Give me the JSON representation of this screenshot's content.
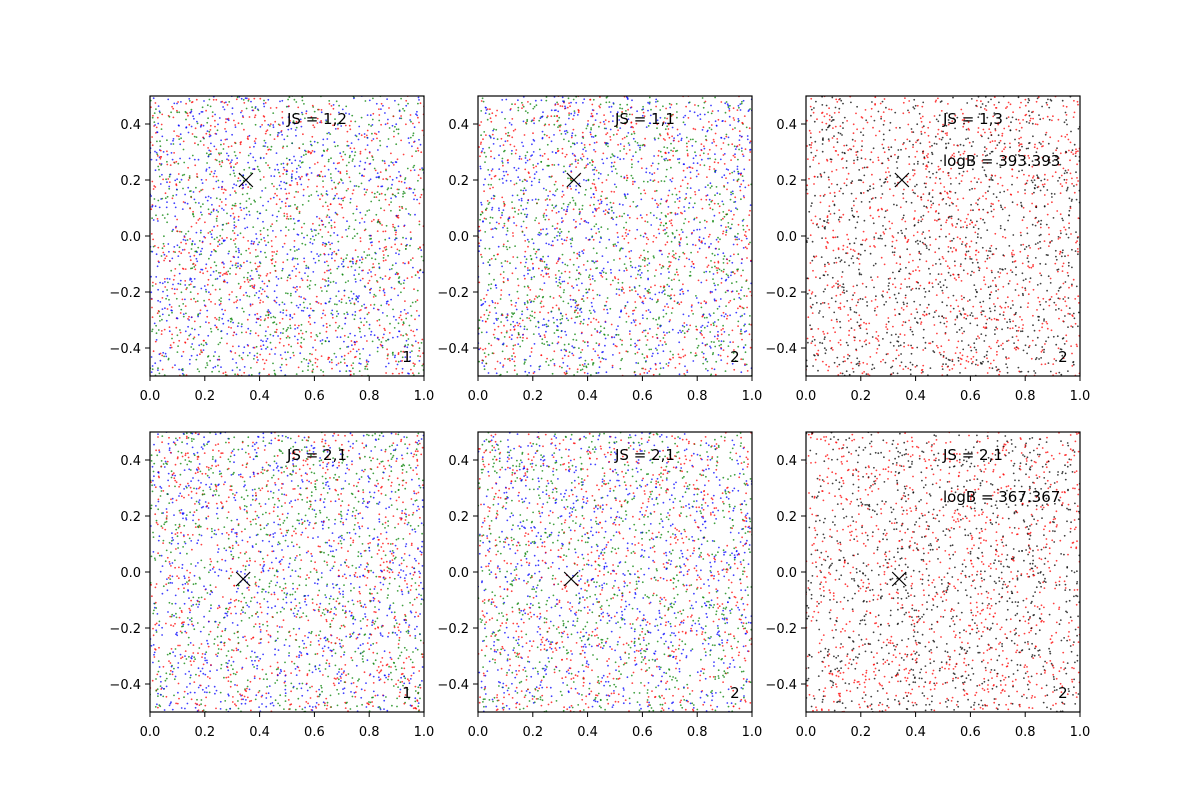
{
  "figure": {
    "background": "#ffffff",
    "scatter_colors": {
      "red": "#ff0000",
      "green": "#008000",
      "blue": "#0000ff",
      "black": "#000000"
    }
  },
  "chart_data": [
    {
      "type": "scatter",
      "panel": "top-left",
      "xlim": [
        0.0,
        1.0
      ],
      "ylim": [
        -0.5,
        0.5
      ],
      "x_ticks": [
        "0.0",
        "0.2",
        "0.4",
        "0.6",
        "0.8",
        "1.0"
      ],
      "y_ticks": [
        "−0.4",
        "−0.2",
        "0.0",
        "0.2",
        "0.4"
      ],
      "x_tick_values": [
        0.0,
        0.2,
        0.4,
        0.6,
        0.8,
        1.0
      ],
      "y_tick_values": [
        -0.4,
        -0.2,
        0.0,
        0.2,
        0.4
      ],
      "series_colors": [
        "#ff0000",
        "#008000",
        "#0000ff"
      ],
      "points_per_series": 900,
      "marker": {
        "x": 0.35,
        "y": 0.2,
        "symbol": "x"
      },
      "annotations": {
        "js": "JS = 1,2",
        "corner": "1",
        "logb": ""
      }
    },
    {
      "type": "scatter",
      "panel": "top-middle",
      "xlim": [
        0.0,
        1.0
      ],
      "ylim": [
        -0.5,
        0.5
      ],
      "x_ticks": [
        "0.0",
        "0.2",
        "0.4",
        "0.6",
        "0.8",
        "1.0"
      ],
      "y_ticks": [
        "−0.4",
        "−0.2",
        "0.0",
        "0.2",
        "0.4"
      ],
      "x_tick_values": [
        0.0,
        0.2,
        0.4,
        0.6,
        0.8,
        1.0
      ],
      "y_tick_values": [
        -0.4,
        -0.2,
        0.0,
        0.2,
        0.4
      ],
      "series_colors": [
        "#ff0000",
        "#008000",
        "#0000ff"
      ],
      "points_per_series": 900,
      "marker": {
        "x": 0.35,
        "y": 0.2,
        "symbol": "x"
      },
      "annotations": {
        "js": "JS = 1,1",
        "corner": "2",
        "logb": ""
      }
    },
    {
      "type": "scatter",
      "panel": "top-right",
      "xlim": [
        0.0,
        1.0
      ],
      "ylim": [
        -0.5,
        0.5
      ],
      "x_ticks": [
        "0.0",
        "0.2",
        "0.4",
        "0.6",
        "0.8",
        "1.0"
      ],
      "y_ticks": [
        "−0.4",
        "−0.2",
        "0.0",
        "0.2",
        "0.4"
      ],
      "x_tick_values": [
        0.0,
        0.2,
        0.4,
        0.6,
        0.8,
        1.0
      ],
      "y_tick_values": [
        -0.4,
        -0.2,
        0.0,
        0.2,
        0.4
      ],
      "series_colors": [
        "#ff0000",
        "#000000"
      ],
      "points_per_series": 1100,
      "marker": {
        "x": 0.35,
        "y": 0.2,
        "symbol": "x"
      },
      "annotations": {
        "js": "JS = 1,3",
        "corner": "2",
        "logb": "logB = 393.393"
      }
    },
    {
      "type": "scatter",
      "panel": "bottom-left",
      "xlim": [
        0.0,
        1.0
      ],
      "ylim": [
        -0.5,
        0.5
      ],
      "x_ticks": [
        "0.0",
        "0.2",
        "0.4",
        "0.6",
        "0.8",
        "1.0"
      ],
      "y_ticks": [
        "−0.4",
        "−0.2",
        "0.0",
        "0.2",
        "0.4"
      ],
      "x_tick_values": [
        0.0,
        0.2,
        0.4,
        0.6,
        0.8,
        1.0
      ],
      "y_tick_values": [
        -0.4,
        -0.2,
        0.0,
        0.2,
        0.4
      ],
      "series_colors": [
        "#ff0000",
        "#008000",
        "#0000ff"
      ],
      "points_per_series": 900,
      "marker": {
        "x": 0.34,
        "y": -0.025,
        "symbol": "x"
      },
      "annotations": {
        "js": "JS = 2,1",
        "corner": "1",
        "logb": ""
      }
    },
    {
      "type": "scatter",
      "panel": "bottom-middle",
      "xlim": [
        0.0,
        1.0
      ],
      "ylim": [
        -0.5,
        0.5
      ],
      "x_ticks": [
        "0.0",
        "0.2",
        "0.4",
        "0.6",
        "0.8",
        "1.0"
      ],
      "y_ticks": [
        "−0.4",
        "−0.2",
        "0.0",
        "0.2",
        "0.4"
      ],
      "x_tick_values": [
        0.0,
        0.2,
        0.4,
        0.6,
        0.8,
        1.0
      ],
      "y_tick_values": [
        -0.4,
        -0.2,
        0.0,
        0.2,
        0.4
      ],
      "series_colors": [
        "#ff0000",
        "#008000",
        "#0000ff"
      ],
      "points_per_series": 900,
      "marker": {
        "x": 0.34,
        "y": -0.025,
        "symbol": "x"
      },
      "annotations": {
        "js": "JS = 2,1",
        "corner": "2",
        "logb": ""
      }
    },
    {
      "type": "scatter",
      "panel": "bottom-right",
      "xlim": [
        0.0,
        1.0
      ],
      "ylim": [
        -0.5,
        0.5
      ],
      "x_ticks": [
        "0.0",
        "0.2",
        "0.4",
        "0.6",
        "0.8",
        "1.0"
      ],
      "y_ticks": [
        "−0.4",
        "−0.2",
        "0.0",
        "0.2",
        "0.4"
      ],
      "x_tick_values": [
        0.0,
        0.2,
        0.4,
        0.6,
        0.8,
        1.0
      ],
      "y_tick_values": [
        -0.4,
        -0.2,
        0.0,
        0.2,
        0.4
      ],
      "series_colors": [
        "#ff0000",
        "#000000"
      ],
      "points_per_series": 1100,
      "marker": {
        "x": 0.34,
        "y": -0.025,
        "symbol": "x"
      },
      "annotations": {
        "js": "JS = 2,1",
        "corner": "2",
        "logb": "logB = 367.367"
      }
    }
  ]
}
